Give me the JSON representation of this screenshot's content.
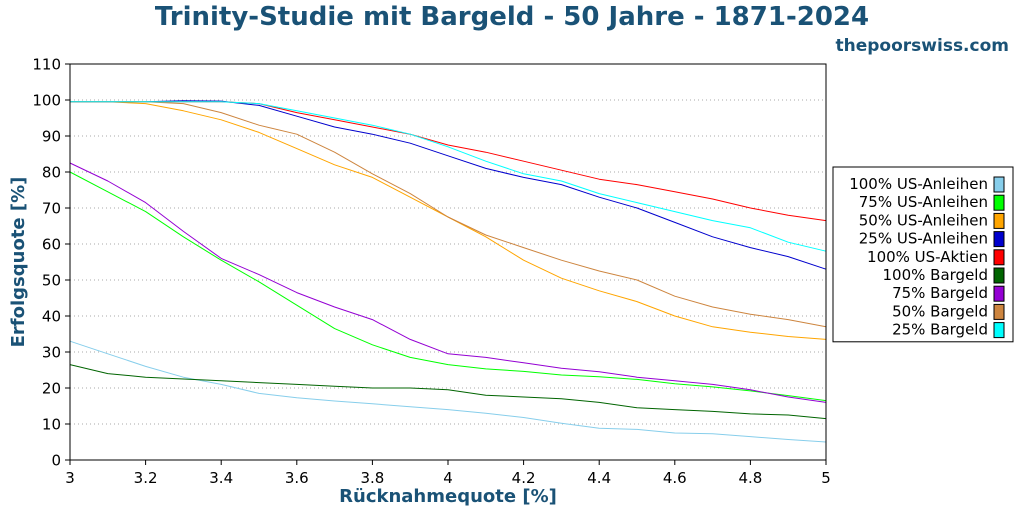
{
  "chart_data": {
    "type": "line",
    "title": "Trinity-Studie mit Bargeld - 50 Jahre - 1871-2024",
    "source_label": "thepoorswiss.com",
    "xlabel": "Rücknahmequote [%]",
    "ylabel": "Erfolgsquote [%]",
    "xlim": [
      3,
      5
    ],
    "ylim": [
      0,
      110
    ],
    "x_ticks": [
      "3",
      "3.2",
      "3.4",
      "3.6",
      "3.8",
      "4",
      "4.2",
      "4.4",
      "4.6",
      "4.8",
      "5"
    ],
    "y_ticks": [
      "0",
      "10",
      "20",
      "30",
      "40",
      "50",
      "60",
      "70",
      "80",
      "90",
      "100",
      "110"
    ],
    "grid": "horizontal dotted",
    "legend_position": "right",
    "x": [
      3.0,
      3.1,
      3.2,
      3.3,
      3.4,
      3.5,
      3.6,
      3.7,
      3.8,
      3.9,
      4.0,
      4.1,
      4.2,
      4.3,
      4.4,
      4.5,
      4.6,
      4.7,
      4.8,
      4.9,
      5.0
    ],
    "series": [
      {
        "name": "100% US-Anleihen",
        "color": "#87ceeb",
        "values": [
          33,
          29.5,
          26,
          23,
          21,
          18.5,
          17.3,
          16.4,
          15.6,
          14.8,
          14,
          13,
          11.8,
          10.2,
          8.8,
          8.5,
          7.5,
          7.3,
          6.5,
          5.7,
          5
        ]
      },
      {
        "name": "75% US-Anleihen",
        "color": "#00ff00",
        "values": [
          80,
          74.5,
          69,
          62,
          55.5,
          49.5,
          43,
          36.5,
          32,
          28.5,
          26.5,
          25.3,
          24.6,
          23.6,
          23.1,
          22.4,
          21.2,
          20.3,
          19.2,
          17.9,
          16.5
        ]
      },
      {
        "name": "50% US-Anleihen",
        "color": "#ffa500",
        "values": [
          99.5,
          99.5,
          99,
          97,
          94.5,
          91,
          86.5,
          82,
          78.5,
          73,
          67.5,
          62,
          55.5,
          50.5,
          47,
          44,
          40,
          37,
          35.5,
          34.3,
          33.5
        ]
      },
      {
        "name": "25% US-Anleihen",
        "color": "#0000cd",
        "values": [
          99.5,
          99.5,
          99.5,
          99.8,
          99.7,
          98.5,
          95.5,
          92.5,
          90.5,
          88,
          84.5,
          81,
          78.5,
          76.5,
          73,
          70,
          66,
          62,
          59,
          56.5,
          53
        ]
      },
      {
        "name": "100% US-Aktien",
        "color": "#ff0000",
        "values": [
          99.5,
          99.5,
          99.5,
          99.5,
          99.5,
          99,
          96.5,
          94.5,
          92.5,
          90.5,
          87.5,
          85.5,
          83,
          80.5,
          78,
          76.5,
          74.5,
          72.5,
          70,
          68,
          66.5
        ]
      },
      {
        "name": "100% Bargeld",
        "color": "#006400",
        "values": [
          26.5,
          24,
          23,
          22.5,
          22,
          21.5,
          21,
          20.5,
          20,
          20,
          19.5,
          18,
          17.5,
          17,
          16,
          14.5,
          14,
          13.5,
          12.8,
          12.5,
          11.5
        ]
      },
      {
        "name": "75% Bargeld",
        "color": "#9400d3",
        "values": [
          82.5,
          77.5,
          71.5,
          63.5,
          56,
          51.5,
          46.5,
          42.5,
          39,
          33.5,
          29.5,
          28.5,
          27,
          25.5,
          24.5,
          23,
          22,
          21,
          19.5,
          17.5,
          16
        ]
      },
      {
        "name": "50% Bargeld",
        "color": "#cd853f",
        "values": [
          99.5,
          99.5,
          99.5,
          99,
          96.5,
          93,
          90.5,
          85.5,
          79.5,
          74,
          67.5,
          62.5,
          59,
          55.5,
          52.5,
          50,
          45.5,
          42.5,
          40.5,
          39,
          37
        ]
      },
      {
        "name": "25% Bargeld",
        "color": "#00ffff",
        "values": [
          99.5,
          99.5,
          99.5,
          99.5,
          99.5,
          99,
          97,
          95,
          93,
          90.5,
          87,
          83,
          79.5,
          77.5,
          74,
          71.5,
          69,
          66.5,
          64.5,
          60.5,
          58
        ]
      }
    ]
  }
}
